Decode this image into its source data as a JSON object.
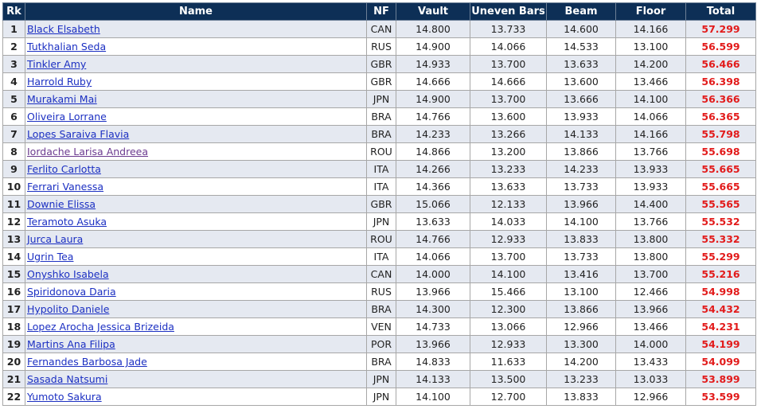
{
  "table": {
    "header": [
      "Rk",
      "Name",
      "NF",
      "Vault",
      "Uneven Bars",
      "Beam",
      "Floor",
      "Total"
    ],
    "rows": [
      [
        "1",
        "Black Elsabeth",
        "CAN",
        "14.800",
        "13.733",
        "14.600",
        "14.166",
        "57.299"
      ],
      [
        "2",
        "Tutkhalian Seda",
        "RUS",
        "14.900",
        "14.066",
        "14.533",
        "13.100",
        "56.599"
      ],
      [
        "3",
        "Tinkler Amy",
        "GBR",
        "14.933",
        "13.700",
        "13.633",
        "14.200",
        "56.466"
      ],
      [
        "4",
        "Harrold Ruby",
        "GBR",
        "14.666",
        "14.666",
        "13.600",
        "13.466",
        "56.398"
      ],
      [
        "5",
        "Murakami Mai",
        "JPN",
        "14.900",
        "13.700",
        "13.666",
        "14.100",
        "56.366"
      ],
      [
        "6",
        "Oliveira Lorrane",
        "BRA",
        "14.766",
        "13.600",
        "13.933",
        "14.066",
        "56.365"
      ],
      [
        "7",
        "Lopes Saraiva Flavia",
        "BRA",
        "14.233",
        "13.266",
        "14.133",
        "14.166",
        "55.798"
      ],
      [
        "8",
        "Iordache Larisa Andreea",
        "ROU",
        "14.866",
        "13.200",
        "13.866",
        "13.766",
        "55.698"
      ],
      [
        "9",
        "Ferlito Carlotta",
        "ITA",
        "14.266",
        "13.233",
        "14.233",
        "13.933",
        "55.665"
      ],
      [
        "10",
        "Ferrari Vanessa",
        "ITA",
        "14.366",
        "13.633",
        "13.733",
        "13.933",
        "55.665"
      ],
      [
        "11",
        "Downie Elissa",
        "GBR",
        "15.066",
        "12.133",
        "13.966",
        "14.400",
        "55.565"
      ],
      [
        "12",
        "Teramoto Asuka",
        "JPN",
        "13.633",
        "14.033",
        "14.100",
        "13.766",
        "55.532"
      ],
      [
        "13",
        "Jurca Laura",
        "ROU",
        "14.766",
        "12.933",
        "13.833",
        "13.800",
        "55.332"
      ],
      [
        "14",
        "Ugrin Tea",
        "ITA",
        "14.066",
        "13.700",
        "13.733",
        "13.800",
        "55.299"
      ],
      [
        "15",
        "Onyshko Isabela",
        "CAN",
        "14.000",
        "14.100",
        "13.416",
        "13.700",
        "55.216"
      ],
      [
        "16",
        "Spiridonova Daria",
        "RUS",
        "13.966",
        "15.466",
        "13.100",
        "12.466",
        "54.998"
      ],
      [
        "17",
        "Hypolito Daniele",
        "BRA",
        "14.300",
        "12.300",
        "13.866",
        "13.966",
        "54.432"
      ],
      [
        "18",
        "Lopez Arocha Jessica Brizeida",
        "VEN",
        "14.733",
        "13.066",
        "12.966",
        "13.466",
        "54.231"
      ],
      [
        "19",
        "Martins Ana Filipa",
        "POR",
        "13.966",
        "12.933",
        "13.300",
        "14.000",
        "54.199"
      ],
      [
        "20",
        "Fernandes Barbosa Jade",
        "BRA",
        "14.833",
        "11.633",
        "14.200",
        "13.433",
        "54.099"
      ],
      [
        "21",
        "Sasada Natsumi",
        "JPN",
        "14.133",
        "13.500",
        "13.233",
        "13.033",
        "53.899"
      ],
      [
        "22",
        "Yumoto Sakura",
        "JPN",
        "14.100",
        "12.700",
        "13.833",
        "12.966",
        "53.599"
      ]
    ]
  }
}
